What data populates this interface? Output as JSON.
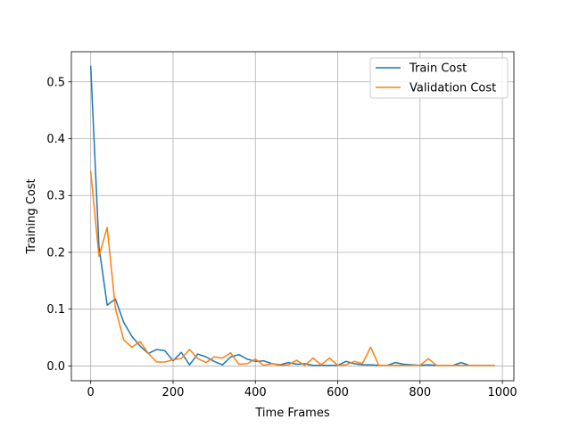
{
  "chart_data": {
    "type": "line",
    "title": "",
    "xlabel": "Time Frames",
    "ylabel": "Training Cost",
    "xlim": [
      -47,
      1028
    ],
    "ylim": [
      -0.026,
      0.553
    ],
    "xticks": [
      0,
      200,
      400,
      600,
      800,
      1000
    ],
    "yticks": [
      0.0,
      0.1,
      0.2,
      0.3,
      0.4,
      0.5
    ],
    "xtick_labels": [
      "0",
      "200",
      "400",
      "600",
      "800",
      "1000"
    ],
    "ytick_labels": [
      "0.0",
      "0.1",
      "0.2",
      "0.3",
      "0.4",
      "0.5"
    ],
    "grid": true,
    "legend_position": "top-right",
    "x": [
      0,
      20,
      40,
      60,
      80,
      100,
      120,
      140,
      160,
      180,
      200,
      220,
      240,
      260,
      280,
      300,
      320,
      340,
      360,
      380,
      400,
      420,
      440,
      460,
      480,
      500,
      520,
      540,
      560,
      580,
      600,
      620,
      640,
      660,
      680,
      700,
      720,
      740,
      760,
      780,
      800,
      820,
      840,
      860,
      880,
      900,
      920,
      940,
      960,
      980
    ],
    "series": [
      {
        "name": "Train Cost",
        "color": "#1f77b4",
        "values": [
          0.527,
          0.21,
          0.107,
          0.118,
          0.077,
          0.052,
          0.035,
          0.022,
          0.029,
          0.027,
          0.009,
          0.024,
          0.002,
          0.021,
          0.016,
          0.008,
          0.002,
          0.016,
          0.02,
          0.012,
          0.008,
          0.009,
          0.004,
          0.002,
          0.006,
          0.003,
          0.004,
          0.001,
          0.001,
          0.001,
          0.001,
          0.008,
          0.004,
          0.002,
          0.002,
          0.001,
          0.001,
          0.006,
          0.003,
          0.002,
          0.001,
          0.002,
          0.001,
          0.001,
          0.001,
          0.006,
          0.001,
          0.001,
          0.001,
          0.001
        ]
      },
      {
        "name": "Validation Cost",
        "color": "#ff7f0e",
        "values": [
          0.342,
          0.193,
          0.244,
          0.101,
          0.046,
          0.033,
          0.043,
          0.022,
          0.007,
          0.007,
          0.011,
          0.013,
          0.029,
          0.013,
          0.006,
          0.016,
          0.014,
          0.023,
          0.003,
          0.004,
          0.012,
          0.001,
          0.004,
          0.001,
          0.002,
          0.01,
          0.001,
          0.014,
          0.002,
          0.014,
          0.001,
          0.002,
          0.008,
          0.004,
          0.033,
          0.001,
          0.001,
          0.001,
          0.001,
          0.001,
          0.001,
          0.013,
          0.001,
          0.001,
          0.001,
          0.001,
          0.001,
          0.001,
          0.001,
          0.001
        ]
      }
    ]
  }
}
